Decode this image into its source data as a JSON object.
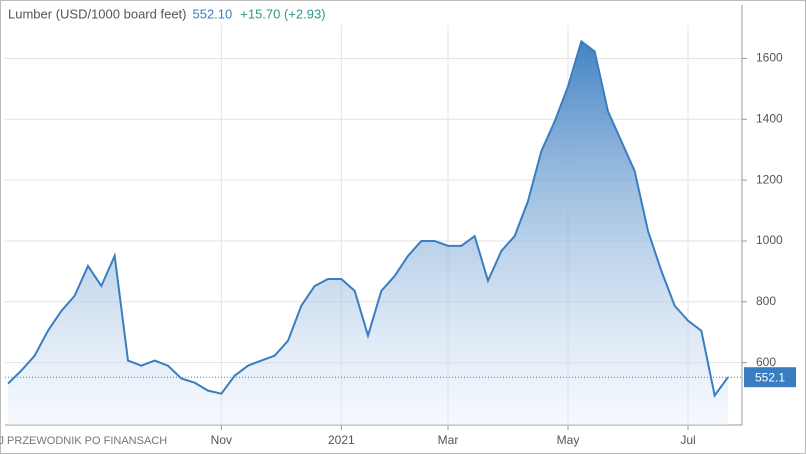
{
  "chart_data": {
    "type": "area",
    "title": "Lumber (USD/1000 board feet)",
    "price": "552.10",
    "change": "+15.70 (+2.93)",
    "watermark": "TWÓJ PRZEWODNIK PO FINANSACH",
    "categories": [
      null,
      null,
      null,
      null,
      null,
      null,
      null,
      null,
      null,
      null,
      null,
      null,
      null,
      null,
      null,
      null,
      "Nov",
      null,
      null,
      null,
      null,
      null,
      null,
      null,
      null,
      "2021",
      null,
      null,
      null,
      null,
      null,
      null,
      null,
      "Mar",
      null,
      null,
      null,
      null,
      null,
      null,
      null,
      null,
      "May",
      null,
      null,
      null,
      null,
      null,
      null,
      null,
      null,
      "Jul",
      null,
      null,
      null
    ],
    "values": [
      531,
      574,
      623,
      705,
      770,
      820,
      918,
      852,
      951,
      607,
      590,
      607,
      590,
      548,
      534,
      508,
      498,
      557,
      590,
      607,
      623,
      672,
      787,
      852,
      875,
      875,
      836,
      689,
      836,
      885,
      951,
      1000,
      1000,
      984,
      984,
      1016,
      869,
      967,
      1016,
      1131,
      1295,
      1393,
      1508,
      1656,
      1623,
      1426,
      1328,
      1230,
      1033,
      902,
      787,
      738,
      705,
      492,
      552.1
    ],
    "color": "#3a7dc0",
    "ylim": [
      395,
      1710
    ],
    "yticks": [
      600,
      800,
      1000,
      1200,
      1400,
      1600
    ],
    "grid": true,
    "axis_side": "right"
  }
}
